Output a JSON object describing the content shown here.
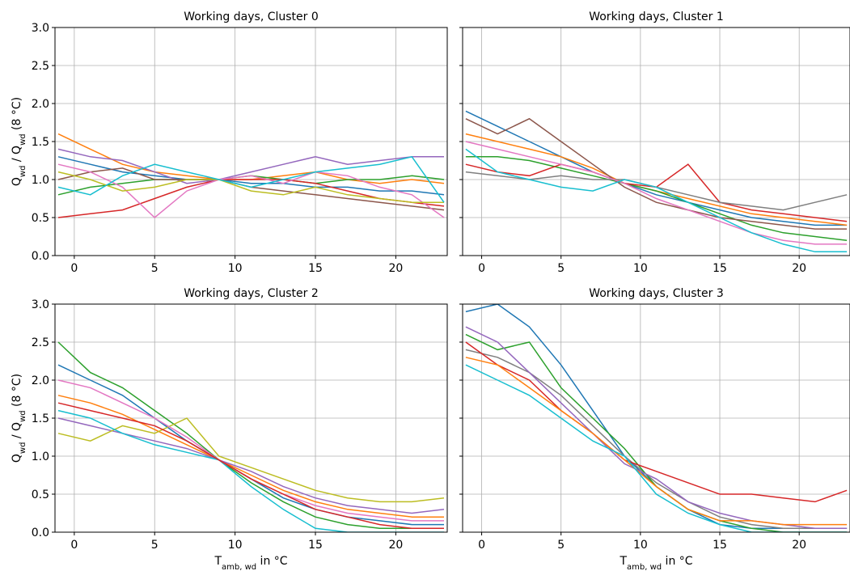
{
  "chart_data": [
    {
      "type": "line",
      "title": "Working days, Cluster 0",
      "ylabel": [
        "Q",
        "wd",
        " / Q",
        "wd",
        " (8 °C)"
      ],
      "x": [
        -1,
        1,
        3,
        5,
        7,
        9,
        11,
        13,
        15,
        17,
        19,
        21,
        23
      ],
      "xlim": [
        -1.2,
        23.2
      ],
      "ylim": [
        0,
        3
      ],
      "xticks": [
        0,
        5,
        10,
        15,
        20
      ],
      "yticks": [
        {
          "value": 0,
          "label": "0.0"
        },
        0.5,
        {
          "value": 1,
          "label": "1.0"
        },
        1.5,
        {
          "value": 2,
          "label": "2.0"
        },
        2.5,
        {
          "value": 3,
          "label": "3.0"
        }
      ],
      "grid": true,
      "series": [
        {
          "color": "#1f77b4",
          "values": [
            1.3,
            1.2,
            1.1,
            1.05,
            1.0,
            1.0,
            0.95,
            0.95,
            0.9,
            0.9,
            0.85,
            0.85,
            0.8
          ]
        },
        {
          "color": "#ff7f0e",
          "values": [
            1.6,
            1.4,
            1.2,
            1.1,
            1.05,
            1.0,
            1.0,
            1.05,
            1.1,
            1.0,
            0.95,
            1.0,
            0.95
          ]
        },
        {
          "color": "#2ca02c",
          "values": [
            0.8,
            0.9,
            0.95,
            1.0,
            1.0,
            1.0,
            1.05,
            1.0,
            0.95,
            1.0,
            1.0,
            1.05,
            1.0
          ]
        },
        {
          "color": "#d62728",
          "values": [
            0.5,
            0.55,
            0.6,
            0.75,
            0.9,
            1.0,
            1.0,
            1.0,
            0.95,
            0.85,
            0.75,
            0.7,
            0.65
          ]
        },
        {
          "color": "#9467bd",
          "values": [
            1.4,
            1.3,
            1.25,
            1.1,
            0.95,
            1.0,
            1.1,
            1.2,
            1.3,
            1.2,
            1.25,
            1.3,
            1.3
          ]
        },
        {
          "color": "#8c564b",
          "values": [
            1.0,
            1.1,
            1.15,
            1.0,
            1.0,
            1.0,
            0.9,
            0.85,
            0.8,
            0.75,
            0.7,
            0.65,
            0.6
          ]
        },
        {
          "color": "#e377c2",
          "values": [
            1.2,
            1.1,
            0.9,
            0.5,
            0.85,
            1.0,
            1.05,
            0.95,
            1.1,
            1.05,
            0.9,
            0.8,
            0.5
          ]
        },
        {
          "color": "#bcbd22",
          "values": [
            1.1,
            1.0,
            0.85,
            0.9,
            1.0,
            1.0,
            0.85,
            0.8,
            0.9,
            0.8,
            0.75,
            0.7,
            0.7
          ]
        },
        {
          "color": "#17becf",
          "values": [
            0.9,
            0.8,
            1.05,
            1.2,
            1.1,
            1.0,
            0.9,
            1.0,
            1.1,
            1.15,
            1.2,
            1.3,
            0.7
          ]
        }
      ]
    },
    {
      "type": "line",
      "title": "Working days, Cluster 1",
      "x": [
        -1,
        1,
        3,
        5,
        7,
        9,
        11,
        13,
        15,
        17,
        19,
        21,
        23
      ],
      "xlim": [
        -1.2,
        23.2
      ],
      "ylim": [
        0,
        3
      ],
      "xticks": [
        0,
        5,
        10,
        15,
        20
      ],
      "grid": true,
      "series": [
        {
          "color": "#1f77b4",
          "values": [
            1.9,
            1.7,
            1.5,
            1.3,
            1.1,
            0.95,
            0.8,
            0.7,
            0.6,
            0.5,
            0.45,
            0.4,
            0.4
          ]
        },
        {
          "color": "#ff7f0e",
          "values": [
            1.6,
            1.5,
            1.4,
            1.3,
            1.15,
            0.95,
            0.85,
            0.75,
            0.65,
            0.55,
            0.5,
            0.45,
            0.4
          ]
        },
        {
          "color": "#2ca02c",
          "values": [
            1.3,
            1.3,
            1.25,
            1.15,
            1.05,
            0.95,
            0.85,
            0.7,
            0.55,
            0.4,
            0.3,
            0.25,
            0.2
          ]
        },
        {
          "color": "#d62728",
          "values": [
            1.2,
            1.1,
            1.05,
            1.2,
            1.1,
            0.95,
            0.9,
            1.2,
            0.7,
            0.6,
            0.55,
            0.5,
            0.45
          ]
        },
        {
          "color": "#8c564b",
          "values": [
            1.8,
            1.6,
            1.8,
            1.5,
            1.2,
            0.9,
            0.7,
            0.6,
            0.5,
            0.45,
            0.4,
            0.35,
            0.35
          ]
        },
        {
          "color": "#7f7f7f",
          "values": [
            1.1,
            1.05,
            1.0,
            1.05,
            1.0,
            1.0,
            0.9,
            0.8,
            0.7,
            0.65,
            0.6,
            0.7,
            0.8
          ]
        },
        {
          "color": "#e377c2",
          "values": [
            1.5,
            1.4,
            1.3,
            1.2,
            1.1,
            0.95,
            0.75,
            0.6,
            0.45,
            0.3,
            0.2,
            0.15,
            0.15
          ]
        },
        {
          "color": "#17becf",
          "values": [
            1.4,
            1.1,
            1.0,
            0.9,
            0.85,
            1.0,
            0.9,
            0.7,
            0.5,
            0.3,
            0.15,
            0.05,
            0.05
          ]
        }
      ]
    },
    {
      "type": "line",
      "title": "Working days, Cluster 2",
      "ylabel": [
        "Q",
        "wd",
        " / Q",
        "wd",
        " (8 °C)"
      ],
      "xlabel": [
        "T",
        "amb, wd",
        " in °C"
      ],
      "x": [
        -1,
        1,
        3,
        5,
        7,
        9,
        11,
        13,
        15,
        17,
        19,
        21,
        23
      ],
      "xlim": [
        -1.2,
        23.2
      ],
      "ylim": [
        0,
        3
      ],
      "xticks": [
        0,
        5,
        10,
        15,
        20
      ],
      "yticks": [
        {
          "value": 0,
          "label": "0.0"
        },
        0.5,
        {
          "value": 1,
          "label": "1.0"
        },
        1.5,
        {
          "value": 2,
          "label": "2.0"
        },
        2.5,
        {
          "value": 3,
          "label": "3.0"
        }
      ],
      "grid": true,
      "series": [
        {
          "color": "#1f77b4",
          "values": [
            2.2,
            2.0,
            1.8,
            1.5,
            1.2,
            0.95,
            0.7,
            0.45,
            0.3,
            0.2,
            0.15,
            0.1,
            0.1
          ]
        },
        {
          "color": "#ff7f0e",
          "values": [
            1.8,
            1.7,
            1.55,
            1.35,
            1.15,
            0.95,
            0.75,
            0.55,
            0.4,
            0.3,
            0.25,
            0.2,
            0.2
          ]
        },
        {
          "color": "#9467bd",
          "values": [
            1.5,
            1.4,
            1.3,
            1.2,
            1.1,
            0.95,
            0.8,
            0.6,
            0.45,
            0.35,
            0.3,
            0.25,
            0.3
          ]
        },
        {
          "color": "#2ca02c",
          "values": [
            2.5,
            2.1,
            1.9,
            1.6,
            1.3,
            0.95,
            0.65,
            0.4,
            0.2,
            0.1,
            0.05,
            0.05,
            0.05
          ]
        },
        {
          "color": "#bcbd22",
          "values": [
            1.3,
            1.2,
            1.4,
            1.3,
            1.5,
            1.0,
            0.85,
            0.7,
            0.55,
            0.45,
            0.4,
            0.4,
            0.45
          ]
        },
        {
          "color": "#17becf",
          "values": [
            1.6,
            1.5,
            1.3,
            1.15,
            1.05,
            0.95,
            0.6,
            0.3,
            0.05,
            0,
            0,
            0,
            0
          ]
        },
        {
          "color": "#e377c2",
          "values": [
            2.0,
            1.9,
            1.7,
            1.5,
            1.25,
            0.95,
            0.7,
            0.5,
            0.35,
            0.25,
            0.2,
            0.15,
            0.15
          ]
        },
        {
          "color": "#d62728",
          "values": [
            1.7,
            1.6,
            1.5,
            1.4,
            1.2,
            0.95,
            0.7,
            0.5,
            0.3,
            0.2,
            0.1,
            0.05,
            0.05
          ]
        }
      ]
    },
    {
      "type": "line",
      "title": "Working days, Cluster 3",
      "xlabel": [
        "T",
        "amb, wd",
        " in °C"
      ],
      "x": [
        -1,
        1,
        3,
        5,
        7,
        9,
        11,
        13,
        15,
        17,
        19,
        21,
        23
      ],
      "xlim": [
        -1.2,
        23.2
      ],
      "ylim": [
        0,
        3
      ],
      "xticks": [
        0,
        5,
        10,
        15,
        20
      ],
      "grid": true,
      "series": [
        {
          "color": "#1f77b4",
          "values": [
            2.9,
            3.0,
            2.7,
            2.2,
            1.6,
            1.0,
            0.6,
            0.3,
            0.1,
            0.05,
            0.05,
            0.05,
            0.05
          ]
        },
        {
          "color": "#7f7f7f",
          "values": [
            2.4,
            2.3,
            2.1,
            1.8,
            1.4,
            1.0,
            0.65,
            0.4,
            0.2,
            0.1,
            0.05,
            0.05,
            0.05
          ]
        },
        {
          "color": "#2ca02c",
          "values": [
            2.6,
            2.4,
            2.5,
            1.9,
            1.5,
            1.1,
            0.6,
            0.3,
            0.15,
            0.05,
            0,
            0,
            0
          ]
        },
        {
          "color": "#d62728",
          "values": [
            2.5,
            2.2,
            2.0,
            1.6,
            1.3,
            0.95,
            0.8,
            0.65,
            0.5,
            0.5,
            0.45,
            0.4,
            0.55
          ]
        },
        {
          "color": "#9467bd",
          "values": [
            2.7,
            2.5,
            2.1,
            1.7,
            1.3,
            0.9,
            0.7,
            0.4,
            0.25,
            0.15,
            0.1,
            0.05,
            0.05
          ]
        },
        {
          "color": "#ff7f0e",
          "values": [
            2.3,
            2.2,
            1.9,
            1.6,
            1.3,
            0.95,
            0.6,
            0.3,
            0.15,
            0.15,
            0.1,
            0.1,
            0.1
          ]
        },
        {
          "color": "#17becf",
          "values": [
            2.2,
            2.0,
            1.8,
            1.5,
            1.2,
            1.0,
            0.5,
            0.25,
            0.1,
            0,
            0,
            0,
            0
          ]
        }
      ]
    }
  ]
}
